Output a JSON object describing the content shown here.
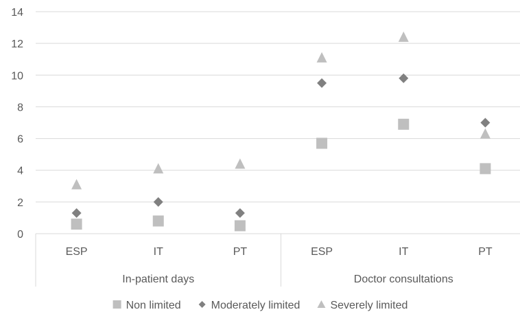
{
  "chart_data": {
    "type": "scatter",
    "title": "",
    "xlabel": "",
    "ylabel": "",
    "ylim": [
      0,
      14
    ],
    "yticks": [
      0,
      2,
      4,
      6,
      8,
      10,
      12,
      14
    ],
    "grid": true,
    "legend_position": "bottom",
    "groups": [
      {
        "label": "In-patient days",
        "categories": [
          "ESP",
          "IT",
          "PT"
        ]
      },
      {
        "label": "Doctor consultations",
        "categories": [
          "ESP",
          "IT",
          "PT"
        ]
      }
    ],
    "series": [
      {
        "name": "Non limited",
        "marker": "square",
        "color": "#bfbfbf",
        "values": [
          0.6,
          0.8,
          0.5,
          5.7,
          6.9,
          4.1
        ]
      },
      {
        "name": "Moderately limited",
        "marker": "diamond",
        "color": "#808080",
        "values": [
          1.3,
          2.0,
          1.3,
          9.5,
          9.8,
          7.0
        ]
      },
      {
        "name": "Severely limited",
        "marker": "triangle",
        "color": "#bfbfbf",
        "values": [
          3.1,
          4.1,
          4.4,
          11.1,
          12.4,
          6.3
        ]
      }
    ]
  }
}
